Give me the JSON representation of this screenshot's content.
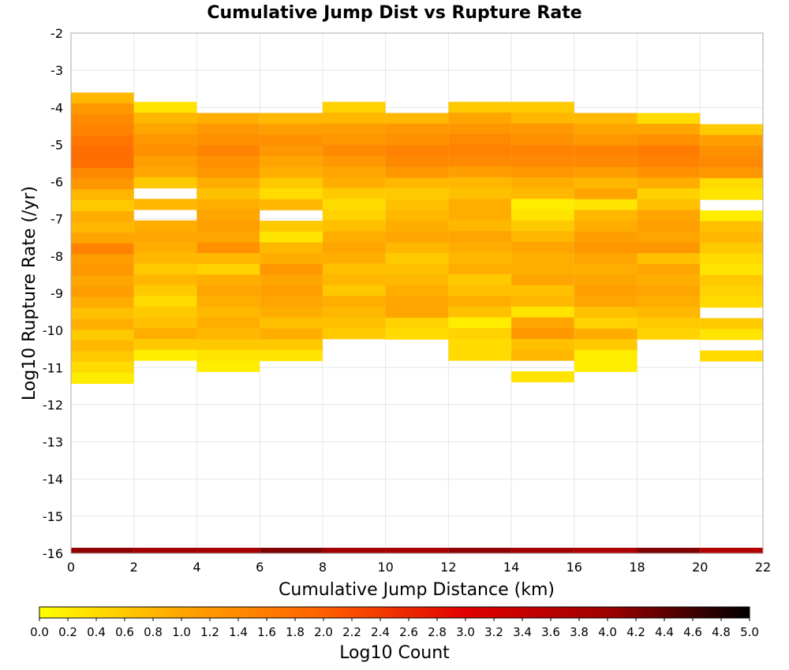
{
  "chart_data": {
    "type": "heatmap",
    "title": "Cumulative Jump Dist vs Rupture Rate",
    "xlabel": "Cumulative Jump Distance (km)",
    "ylabel": "Log10 Rupture Rate (/yr)",
    "xlim": [
      0,
      22
    ],
    "ylim": [
      -16,
      -2
    ],
    "x_ticks": [
      "0",
      "2",
      "4",
      "6",
      "8",
      "10",
      "12",
      "14",
      "16",
      "18",
      "20",
      "22"
    ],
    "y_ticks": [
      "-2",
      "-3",
      "-4",
      "-5",
      "-6",
      "-7",
      "-8",
      "-9",
      "-10",
      "-11",
      "-12",
      "-13",
      "-14",
      "-15",
      "-16"
    ],
    "x_bin_width": 2,
    "y_bin_height": 0.29,
    "grid": true,
    "colorbar": {
      "label": "Log10 Count",
      "range": [
        0,
        5
      ],
      "ticks": [
        "0.0",
        "0.2",
        "0.4",
        "0.6",
        "0.8",
        "1.0",
        "1.2",
        "1.4",
        "1.6",
        "1.8",
        "2.0",
        "2.2",
        "2.4",
        "2.6",
        "2.8",
        "3.0",
        "3.2",
        "3.4",
        "3.6",
        "3.8",
        "4.0",
        "4.2",
        "4.4",
        "4.6",
        "4.8",
        "5.0"
      ],
      "colors": [
        "#ffff00",
        "#ffa500",
        "#ff6000",
        "#e00000",
        "#a00000",
        "#000000"
      ]
    },
    "columns": [
      {
        "x": 1,
        "y_start": -3.6,
        "values": [
          0.8,
          1.2,
          1.4,
          1.5,
          1.7,
          1.8,
          1.8,
          1.4,
          1.2,
          0.8,
          0.6,
          0.9,
          0.8,
          1.0,
          1.5,
          1.1,
          1.2,
          1.0,
          1.1,
          0.9,
          0.7,
          0.9,
          0.6,
          0.8,
          0.6,
          0.4,
          0.2
        ],
        "bottom": 4.1
      },
      {
        "x": 3,
        "y_start": -3.85,
        "values": [
          0.3,
          0.8,
          1.0,
          1.2,
          1.3,
          1.1,
          1.0,
          0.6,
          null,
          0.8,
          null,
          0.9,
          1.0,
          0.9,
          0.8,
          0.6,
          0.8,
          0.6,
          0.4,
          0.6,
          0.7,
          0.9,
          0.6,
          0.2
        ],
        "bottom": 4.0
      },
      {
        "x": 5,
        "y_start": -4.15,
        "values": [
          0.9,
          1.2,
          1.3,
          1.5,
          1.3,
          1.2,
          0.9,
          0.7,
          0.9,
          1.0,
          1.1,
          1.0,
          1.3,
          0.8,
          0.5,
          0.9,
          1.0,
          0.9,
          0.8,
          0.9,
          0.8,
          0.6,
          0.3,
          0.2
        ],
        "bottom": 3.9
      },
      {
        "x": 7,
        "y_start": -4.15,
        "values": [
          0.8,
          1.1,
          1.3,
          1.2,
          1.0,
          0.9,
          0.6,
          0.4,
          0.8,
          null,
          0.6,
          0.3,
          0.8,
          0.9,
          1.2,
          1.0,
          1.1,
          1.0,
          0.9,
          0.7,
          0.9,
          0.6,
          0.3
        ],
        "bottom": 4.2
      },
      {
        "x": 9,
        "y_start": -3.85,
        "values": [
          0.5,
          0.8,
          1.1,
          1.2,
          1.4,
          1.2,
          1.0,
          0.9,
          0.6,
          0.4,
          0.5,
          0.7,
          0.9,
          1.0,
          0.9,
          0.7,
          0.8,
          0.6,
          0.9,
          0.8,
          0.7,
          0.6
        ],
        "bottom": 4.0
      },
      {
        "x": 11,
        "y_start": -4.15,
        "values": [
          0.8,
          1.2,
          1.3,
          1.5,
          1.4,
          1.2,
          0.8,
          0.6,
          0.7,
          0.8,
          0.9,
          1.0,
          0.8,
          0.6,
          0.7,
          0.8,
          0.9,
          1.0,
          1.0,
          0.5,
          0.4
        ],
        "bottom": 3.9
      },
      {
        "x": 13,
        "y_start": -3.85,
        "values": [
          0.6,
          1.0,
          1.2,
          1.4,
          1.5,
          1.4,
          1.1,
          0.8,
          0.7,
          0.9,
          0.9,
          0.8,
          1.0,
          0.9,
          0.8,
          0.9,
          0.6,
          0.7,
          0.9,
          0.7,
          0.2,
          0.5,
          0.4,
          0.4
        ],
        "bottom": 4.1
      },
      {
        "x": 15,
        "y_start": -3.85,
        "values": [
          0.6,
          0.8,
          1.2,
          1.3,
          1.5,
          1.4,
          1.2,
          0.9,
          0.8,
          0.2,
          0.3,
          0.6,
          0.8,
          1.0,
          0.9,
          0.9,
          1.0,
          0.7,
          0.8,
          0.3,
          1.0,
          1.2,
          0.7,
          0.8,
          null,
          0.3
        ],
        "bottom": 4.0
      },
      {
        "x": 17,
        "y_start": -4.15,
        "values": [
          0.8,
          1.0,
          1.2,
          1.5,
          1.4,
          1.1,
          0.8,
          1.0,
          0.3,
          0.8,
          0.9,
          1.1,
          1.2,
          1.0,
          0.9,
          1.0,
          1.1,
          1.0,
          0.7,
          0.5,
          0.9,
          0.6,
          0.2,
          0.2
        ],
        "bottom": 3.8
      },
      {
        "x": 19,
        "y_start": -4.15,
        "values": [
          0.4,
          1.0,
          1.3,
          1.6,
          1.5,
          1.3,
          0.9,
          0.5,
          0.7,
          1.0,
          1.1,
          1.0,
          1.2,
          0.7,
          1.0,
          0.9,
          1.0,
          0.9,
          0.8,
          0.6,
          0.5
        ],
        "bottom": 4.2
      },
      {
        "x": 21,
        "y_start": -4.45,
        "values": [
          0.6,
          1.1,
          1.3,
          1.4,
          1.2,
          0.4,
          0.3,
          null,
          0.2,
          0.7,
          0.8,
          0.6,
          0.4,
          0.3,
          0.6,
          0.5,
          0.4,
          null,
          0.6,
          0.3,
          null,
          0.4
        ],
        "bottom": 3.7
      }
    ]
  }
}
